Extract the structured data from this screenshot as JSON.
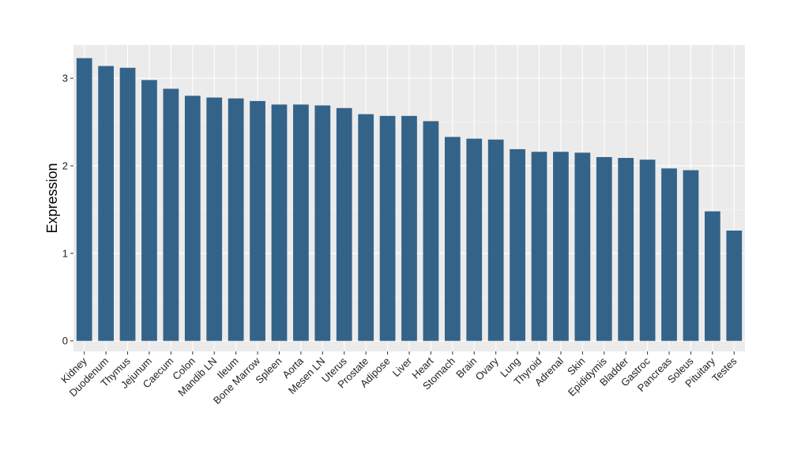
{
  "chart_data": {
    "type": "bar",
    "title": "",
    "xlabel": "",
    "ylabel": "Expression",
    "ylim": [
      -0.12,
      3.38
    ],
    "yticks": [
      0,
      1,
      2,
      3
    ],
    "grid": true,
    "bar_color": "#34638a",
    "panel_color": "#ebebeb",
    "categories": [
      "Kidney",
      "Duodenum",
      "Thymus",
      "Jejunum",
      "Caecum",
      "Colon",
      "Mandib LN",
      "Ileum",
      "Bone Marrow",
      "Spleen",
      "Aorta",
      "Mesen LN",
      "Uterus",
      "Prostate",
      "Adipose",
      "Liver",
      "Heart",
      "Stomach",
      "Brain",
      "Ovary",
      "Lung",
      "Thyroid",
      "Adrenal",
      "Skin",
      "Epididymis",
      "Bladder",
      "Gastroc",
      "Pancreas",
      "Soleus",
      "Pituitary",
      "Testes"
    ],
    "values": [
      3.23,
      3.14,
      3.12,
      2.98,
      2.88,
      2.8,
      2.78,
      2.77,
      2.74,
      2.7,
      2.7,
      2.69,
      2.66,
      2.59,
      2.57,
      2.57,
      2.51,
      2.33,
      2.31,
      2.3,
      2.19,
      2.16,
      2.16,
      2.15,
      2.1,
      2.09,
      2.07,
      1.97,
      1.95,
      1.48,
      1.26
    ]
  }
}
